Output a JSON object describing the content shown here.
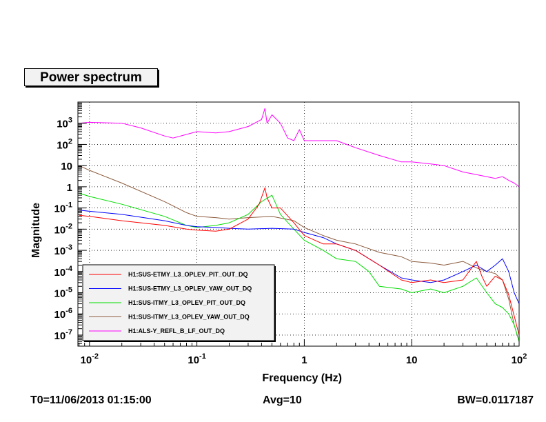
{
  "title": "Power spectrum",
  "footer": {
    "t0": "T0=11/06/2013 01:15:00",
    "avg": "Avg=10",
    "bw": "BW=0.0117187"
  },
  "chart_data": {
    "type": "line",
    "title": "Power spectrum",
    "xlabel": "Frequency (Hz)",
    "ylabel": "Magnitude",
    "xscale": "log",
    "yscale": "log",
    "xlim": [
      0.0078,
      100
    ],
    "ylim": [
      3e-08,
      10000
    ],
    "grid": true,
    "legend_position": "bottom-left",
    "x_ticks": [
      {
        "value": 0.01,
        "base": "10",
        "exp": "-2"
      },
      {
        "value": 0.1,
        "base": "10",
        "exp": "-1"
      },
      {
        "value": 1,
        "base": "1",
        "exp": ""
      },
      {
        "value": 10,
        "base": "10",
        "exp": ""
      },
      {
        "value": 100,
        "base": "10",
        "exp": "2"
      }
    ],
    "y_ticks": [
      {
        "value": 1000,
        "base": "10",
        "exp": "3"
      },
      {
        "value": 100,
        "base": "10",
        "exp": "2"
      },
      {
        "value": 10,
        "base": "10",
        "exp": ""
      },
      {
        "value": 1,
        "base": "1",
        "exp": ""
      },
      {
        "value": 0.1,
        "base": "10",
        "exp": "-1"
      },
      {
        "value": 0.01,
        "base": "10",
        "exp": "-2"
      },
      {
        "value": 0.001,
        "base": "10",
        "exp": "-3"
      },
      {
        "value": 0.0001,
        "base": "10",
        "exp": "-4"
      },
      {
        "value": 1e-05,
        "base": "10",
        "exp": "-5"
      },
      {
        "value": 1e-06,
        "base": "10",
        "exp": "-6"
      },
      {
        "value": 1e-07,
        "base": "10",
        "exp": "-7"
      }
    ],
    "series": [
      {
        "name": "H1:SUS-ETMY_L3_OPLEV_PIT_OUT_DQ",
        "color": "#ff0000",
        "x": [
          0.008,
          0.01,
          0.02,
          0.05,
          0.08,
          0.1,
          0.15,
          0.2,
          0.3,
          0.38,
          0.43,
          0.45,
          0.5,
          0.6,
          0.8,
          1,
          1.5,
          2,
          3,
          5,
          8,
          10,
          15,
          20,
          30,
          40,
          45,
          50,
          60,
          70,
          80,
          90,
          100
        ],
        "y": [
          0.045,
          0.04,
          0.025,
          0.015,
          0.01,
          0.009,
          0.008,
          0.01,
          0.03,
          0.15,
          0.9,
          0.3,
          0.1,
          0.1,
          0.02,
          0.005,
          0.002,
          0.002,
          0.001,
          0.0002,
          4e-05,
          3e-05,
          4e-05,
          3e-05,
          4e-05,
          0.0003,
          6e-05,
          2e-05,
          6e-05,
          4e-05,
          8e-06,
          8e-07,
          1e-07
        ]
      },
      {
        "name": "H1:SUS-ETMY_L3_OPLEV_YAW_OUT_DQ",
        "color": "#0000ff",
        "x": [
          0.008,
          0.01,
          0.02,
          0.05,
          0.08,
          0.1,
          0.15,
          0.2,
          0.3,
          0.5,
          0.8,
          1,
          1.5,
          2,
          3,
          5,
          8,
          10,
          15,
          20,
          30,
          40,
          50,
          60,
          70,
          80,
          90,
          100
        ],
        "y": [
          0.08,
          0.07,
          0.05,
          0.025,
          0.015,
          0.013,
          0.012,
          0.011,
          0.01,
          0.011,
          0.01,
          0.007,
          0.004,
          0.002,
          0.001,
          0.0002,
          5e-05,
          4e-05,
          3e-05,
          4e-05,
          0.0001,
          0.0002,
          0.0001,
          0.0002,
          0.0004,
          0.0001,
          1e-05,
          3e-06
        ]
      },
      {
        "name": "H1:SUS-ITMY_L3_OPLEV_PIT_OUT_DQ",
        "color": "#00dd00",
        "x": [
          0.008,
          0.01,
          0.02,
          0.05,
          0.08,
          0.1,
          0.15,
          0.2,
          0.3,
          0.4,
          0.5,
          0.6,
          0.8,
          1,
          1.5,
          2,
          3,
          4,
          5,
          8,
          10,
          15,
          20,
          30,
          40,
          50,
          60,
          70,
          80,
          90,
          100
        ],
        "y": [
          0.5,
          0.35,
          0.15,
          0.04,
          0.015,
          0.012,
          0.015,
          0.02,
          0.05,
          0.2,
          0.4,
          0.05,
          0.01,
          0.003,
          0.001,
          0.0004,
          0.0003,
          0.0001,
          2e-05,
          1.5e-05,
          1e-05,
          1.5e-05,
          1e-05,
          2e-05,
          5e-05,
          1e-05,
          3e-06,
          2e-06,
          1e-06,
          3e-07,
          5e-08
        ]
      },
      {
        "name": "H1:SUS-ITMY_L3_OPLEV_YAW_OUT_DQ",
        "color": "#8b5a3c",
        "x": [
          0.008,
          0.01,
          0.02,
          0.05,
          0.08,
          0.1,
          0.15,
          0.2,
          0.3,
          0.5,
          0.8,
          1,
          1.5,
          2,
          3,
          5,
          8,
          10,
          15,
          20,
          30,
          40,
          50,
          60,
          70,
          80,
          90,
          100
        ],
        "y": [
          10,
          6,
          1.5,
          0.2,
          0.06,
          0.04,
          0.035,
          0.03,
          0.035,
          0.04,
          0.025,
          0.012,
          0.005,
          0.003,
          0.002,
          0.0008,
          0.0005,
          0.0003,
          0.00025,
          0.0002,
          0.0003,
          0.00015,
          0.0001,
          8e-05,
          4e-05,
          5e-06,
          3e-07,
          5e-08
        ]
      },
      {
        "name": "H1:ALS-Y_REFL_B_LF_OUT_DQ",
        "color": "#ff00ff",
        "x": [
          0.008,
          0.01,
          0.02,
          0.03,
          0.05,
          0.06,
          0.1,
          0.15,
          0.2,
          0.3,
          0.4,
          0.43,
          0.45,
          0.5,
          0.6,
          0.7,
          0.8,
          0.9,
          1,
          2,
          3,
          5,
          8,
          10,
          15,
          20,
          30,
          50,
          60,
          70,
          80,
          90,
          100
        ],
        "y": [
          1000,
          1100,
          1000,
          600,
          250,
          200,
          400,
          350,
          400,
          700,
          1500,
          5000,
          1000,
          2500,
          1000,
          200,
          150,
          500,
          150,
          150,
          70,
          30,
          15,
          15,
          12,
          10,
          5,
          3,
          2.5,
          3,
          2,
          1.5,
          1
        ]
      }
    ]
  }
}
